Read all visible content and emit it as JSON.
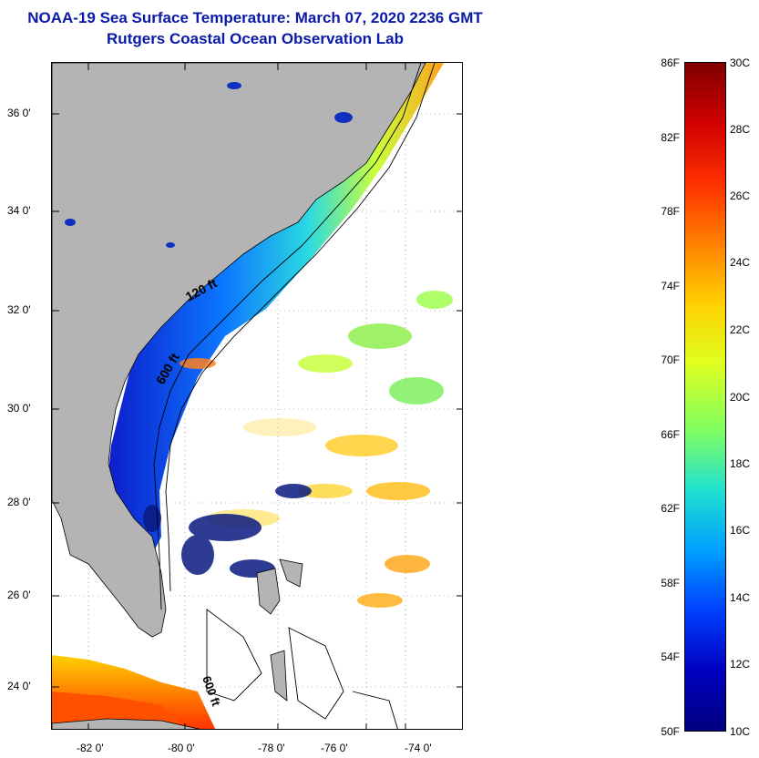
{
  "header": {
    "title": "NOAA-19 Sea Surface Temperature:  March 07, 2020 2236 GMT",
    "subtitle": "Rutgers Coastal Ocean Observation Lab"
  },
  "map": {
    "lat_ticks": [
      "36 0'",
      "34 0'",
      "32 0'",
      "30 0'",
      "28 0'",
      "26 0'",
      "24 0'"
    ],
    "lon_ticks": [
      "-82 0'",
      "-80 0'",
      "-78 0'",
      "-76 0'",
      "-74 0'"
    ],
    "contour_labels": [
      "120 ft",
      "600 ft",
      "600 ft"
    ],
    "colors": {
      "land": "#b4b4b4",
      "ocean_no_data": "#ffffff",
      "contour": "#000000"
    }
  },
  "colorbar": {
    "fahrenheit_labels": [
      "86F",
      "82F",
      "78F",
      "74F",
      "70F",
      "66F",
      "62F",
      "58F",
      "54F",
      "50F"
    ],
    "celsius_labels": [
      "30C",
      "28C",
      "26C",
      "24C",
      "22C",
      "20C",
      "18C",
      "16C",
      "14C",
      "12C",
      "10C"
    ],
    "gradient_colors": [
      "#800000",
      "#d00000",
      "#ff3000",
      "#ff8000",
      "#ffd000",
      "#e0ff20",
      "#80ff60",
      "#20e0d0",
      "#00a0ff",
      "#0040ff",
      "#0000c0",
      "#000080"
    ]
  }
}
